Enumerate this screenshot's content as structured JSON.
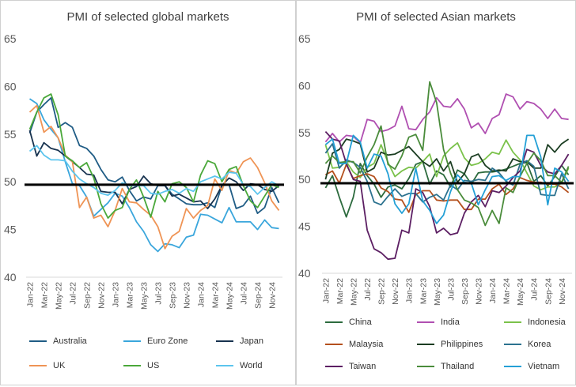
{
  "chart_data": [
    {
      "type": "line",
      "title": "PMI of selected global markets",
      "xlabel": "",
      "ylabel": "",
      "ylim": [
        40,
        65
      ],
      "yticks": [
        40,
        45,
        50,
        55,
        60,
        65
      ],
      "reference_line": 49.7,
      "x": [
        "Jan-22",
        "Feb-22",
        "Mar-22",
        "Apr-22",
        "May-22",
        "Jun-22",
        "Jul-22",
        "Aug-22",
        "Sep-22",
        "Oct-22",
        "Nov-22",
        "Dec-22",
        "Jan-23",
        "Feb-23",
        "Mar-23",
        "Apr-23",
        "May-23",
        "Jun-23",
        "Jul-23",
        "Aug-23",
        "Sep-23",
        "Oct-23",
        "Nov-23",
        "Dec-23",
        "Jan-24",
        "Feb-24",
        "Mar-24",
        "Apr-24",
        "May-24",
        "Jun-24",
        "Jul-24",
        "Aug-24",
        "Sep-24",
        "Oct-24",
        "Nov-24",
        "Dec-24"
      ],
      "xtick_labels": [
        "Jan-22",
        "Mar-22",
        "May-22",
        "Jul-22",
        "Sep-22",
        "Nov-22",
        "Jan-23",
        "Mar-23",
        "May-23",
        "Jul-23",
        "Sep-23",
        "Nov-23",
        "Jan-24",
        "Mar-24",
        "May-24",
        "Jul-24",
        "Sep-24",
        "Nov-24"
      ],
      "legend_position": "bottom",
      "series": [
        {
          "name": "Australia",
          "color": "#1f5c85",
          "values": [
            55.1,
            57.3,
            58.1,
            58.8,
            55.7,
            56.2,
            55.7,
            53.8,
            53.5,
            52.7,
            51.3,
            50.2,
            50.0,
            50.5,
            49.1,
            48.0,
            48.4,
            48.2,
            49.6,
            49.6,
            48.7,
            48.2,
            47.7,
            47.6,
            47.6,
            47.8,
            47.3,
            49.6,
            49.7,
            47.2,
            47.5,
            48.5,
            46.7,
            47.3,
            49.4,
            47.8
          ]
        },
        {
          "name": "Euro Zone",
          "color": "#3aa6dc",
          "values": [
            58.7,
            58.2,
            56.5,
            55.5,
            54.6,
            52.1,
            49.8,
            49.6,
            48.4,
            46.4,
            47.1,
            47.8,
            48.8,
            48.5,
            47.3,
            45.8,
            44.8,
            43.4,
            42.7,
            43.5,
            43.4,
            43.1,
            44.2,
            44.4,
            46.6,
            46.5,
            46.1,
            45.7,
            47.3,
            45.8,
            45.8,
            45.8,
            45.0,
            46.0,
            45.2,
            45.1
          ]
        },
        {
          "name": "Japan",
          "color": "#17324f",
          "values": [
            55.4,
            52.7,
            54.1,
            53.5,
            53.3,
            52.7,
            52.1,
            51.5,
            50.8,
            50.7,
            49.0,
            48.9,
            48.9,
            47.7,
            49.2,
            49.5,
            50.6,
            49.8,
            49.6,
            49.6,
            48.5,
            48.7,
            48.3,
            47.9,
            48.0,
            47.2,
            48.2,
            49.6,
            50.4,
            50.0,
            49.1,
            49.8,
            49.7,
            49.2,
            49.0,
            49.6
          ]
        },
        {
          "name": "UK",
          "color": "#ef9455",
          "values": [
            57.3,
            58.0,
            55.2,
            55.8,
            54.6,
            52.8,
            52.1,
            47.3,
            48.4,
            46.2,
            46.5,
            45.3,
            47.0,
            49.3,
            47.9,
            47.8,
            47.1,
            46.5,
            45.3,
            43.0,
            44.3,
            44.8,
            47.2,
            46.2,
            47.0,
            47.5,
            50.3,
            49.1,
            51.2,
            50.9,
            52.1,
            52.5,
            51.5,
            49.9,
            48.0,
            47.0
          ]
        },
        {
          "name": "US",
          "color": "#4aa83a",
          "values": [
            55.5,
            57.3,
            58.8,
            59.2,
            57.0,
            52.7,
            52.2,
            51.5,
            52.0,
            50.4,
            47.7,
            46.2,
            47.0,
            47.3,
            49.2,
            50.2,
            48.4,
            46.3,
            49.0,
            47.9,
            49.8,
            50.0,
            49.4,
            47.9,
            50.7,
            52.2,
            51.9,
            50.0,
            51.3,
            51.6,
            49.6,
            48.0,
            47.3,
            48.5,
            49.7,
            49.4
          ]
        },
        {
          "name": "World",
          "color": "#5cc5ee",
          "values": [
            53.2,
            53.8,
            52.8,
            52.3,
            52.3,
            52.2,
            51.1,
            50.3,
            49.8,
            49.4,
            48.8,
            48.6,
            49.1,
            49.9,
            49.6,
            49.6,
            49.6,
            48.8,
            48.7,
            49.0,
            49.2,
            48.8,
            49.3,
            49.0,
            50.0,
            50.3,
            50.6,
            50.3,
            51.0,
            50.9,
            49.7,
            49.5,
            48.7,
            49.4,
            50.0,
            49.6
          ]
        }
      ]
    },
    {
      "type": "line",
      "title": "PMI of selected Asian markets",
      "xlabel": "",
      "ylabel": "",
      "ylim": [
        40,
        65
      ],
      "yticks": [
        40,
        45,
        50,
        55,
        60,
        65
      ],
      "reference_line": 49.6,
      "x": [
        "Jan-22",
        "Feb-22",
        "Mar-22",
        "Apr-22",
        "May-22",
        "Jun-22",
        "Jul-22",
        "Aug-22",
        "Sep-22",
        "Oct-22",
        "Nov-22",
        "Dec-22",
        "Jan-23",
        "Feb-23",
        "Mar-23",
        "Apr-23",
        "May-23",
        "Jun-23",
        "Jul-23",
        "Aug-23",
        "Sep-23",
        "Oct-23",
        "Nov-23",
        "Dec-23",
        "Jan-24",
        "Feb-24",
        "Mar-24",
        "Apr-24",
        "May-24",
        "Jun-24",
        "Jul-24",
        "Aug-24",
        "Sep-24",
        "Oct-24",
        "Nov-24",
        "Dec-24"
      ],
      "xtick_labels": [
        "Jan-22",
        "Mar-22",
        "May-22",
        "Jul-22",
        "Sep-22",
        "Nov-22",
        "Jan-23",
        "Mar-23",
        "May-23",
        "Jul-23",
        "Sep-23",
        "Nov-23",
        "Jan-24",
        "Mar-24",
        "May-24",
        "Jul-24",
        "Sep-24",
        "Nov-24"
      ],
      "legend_position": "bottom",
      "series": [
        {
          "name": "China",
          "color": "#2d6b3e",
          "values": [
            49.1,
            50.4,
            48.1,
            46.0,
            48.1,
            51.7,
            50.4,
            49.5,
            48.1,
            49.2,
            49.4,
            49.0,
            50.1,
            51.6,
            51.9,
            49.5,
            50.9,
            50.5,
            49.2,
            51.0,
            50.6,
            49.5,
            50.7,
            50.8,
            50.8,
            50.9,
            51.1,
            51.4,
            51.7,
            51.8,
            49.8,
            50.4,
            49.3,
            50.3,
            51.5,
            50.5
          ]
        },
        {
          "name": "India",
          "color": "#b04fb1",
          "values": [
            54.0,
            54.9,
            54.0,
            54.7,
            54.6,
            53.9,
            56.4,
            56.2,
            55.1,
            55.3,
            55.7,
            57.8,
            55.4,
            55.3,
            56.4,
            57.2,
            58.7,
            57.8,
            57.7,
            58.6,
            57.5,
            55.5,
            56.0,
            54.9,
            56.5,
            56.9,
            59.1,
            58.8,
            57.5,
            58.3,
            58.1,
            57.5,
            56.5,
            57.5,
            56.5,
            56.4
          ]
        },
        {
          "name": "Indonesia",
          "color": "#7bc24b",
          "values": [
            53.7,
            51.2,
            51.3,
            51.9,
            50.8,
            50.2,
            51.3,
            51.7,
            53.7,
            51.8,
            50.3,
            50.9,
            51.3,
            51.2,
            51.9,
            52.7,
            50.3,
            52.5,
            53.3,
            53.9,
            52.3,
            51.5,
            51.7,
            52.2,
            52.9,
            52.7,
            54.2,
            52.9,
            52.1,
            50.7,
            49.3,
            48.9,
            49.2,
            49.2,
            49.6,
            51.2
          ]
        },
        {
          "name": "Malaysia",
          "color": "#b4501d",
          "values": [
            50.5,
            50.9,
            49.6,
            51.6,
            50.1,
            50.4,
            50.6,
            50.3,
            49.1,
            48.7,
            47.9,
            47.8,
            46.5,
            48.4,
            48.8,
            48.8,
            47.8,
            47.7,
            47.8,
            47.8,
            46.8,
            46.8,
            47.9,
            47.9,
            49.0,
            49.5,
            48.4,
            49.0,
            50.2,
            49.9,
            49.7,
            49.7,
            49.5,
            49.5,
            49.2,
            48.6
          ]
        },
        {
          "name": "Philippines",
          "color": "#1b3d22",
          "values": [
            50.0,
            52.8,
            53.2,
            54.3,
            54.1,
            53.8,
            50.8,
            51.2,
            52.9,
            52.6,
            52.7,
            53.1,
            53.5,
            52.7,
            51.9,
            51.4,
            52.2,
            50.9,
            51.9,
            49.7,
            50.6,
            52.4,
            52.7,
            51.5,
            50.9,
            51.0,
            50.9,
            52.2,
            51.9,
            51.9,
            51.2,
            51.2,
            53.7,
            52.9,
            53.8,
            54.3
          ]
        },
        {
          "name": "Korea",
          "color": "#2c728f",
          "values": [
            52.8,
            53.8,
            51.2,
            52.1,
            51.8,
            51.3,
            49.8,
            47.6,
            47.3,
            48.2,
            49.0,
            48.2,
            48.5,
            48.5,
            47.6,
            48.1,
            48.4,
            47.8,
            49.4,
            48.9,
            49.9,
            49.8,
            50.0,
            49.9,
            51.2,
            50.7,
            49.8,
            49.4,
            51.6,
            52.0,
            51.4,
            48.4,
            48.3,
            48.3,
            50.6,
            49.0
          ]
        },
        {
          "name": "Taiwan",
          "color": "#5c1f63",
          "values": [
            55.1,
            54.3,
            54.1,
            51.7,
            50.0,
            49.8,
            44.6,
            42.6,
            42.2,
            41.5,
            41.6,
            44.6,
            44.3,
            49.0,
            48.6,
            47.1,
            44.3,
            44.8,
            44.1,
            44.3,
            46.4,
            47.6,
            48.3,
            47.1,
            48.8,
            48.6,
            49.3,
            50.2,
            50.9,
            53.2,
            52.9,
            51.5,
            50.8,
            50.6,
            51.5,
            52.7
          ]
        },
        {
          "name": "Thailand",
          "color": "#4a8c3b",
          "values": [
            51.7,
            52.5,
            51.8,
            51.9,
            51.9,
            50.7,
            52.4,
            53.7,
            55.7,
            51.6,
            51.1,
            52.5,
            54.5,
            54.8,
            53.1,
            60.4,
            58.2,
            53.2,
            50.7,
            48.9,
            47.8,
            47.5,
            47.0,
            45.1,
            46.7,
            45.3,
            49.1,
            48.6,
            50.3,
            51.7,
            52.8,
            52.0,
            50.4,
            50.4,
            49.7,
            51.4
          ]
        },
        {
          "name": "Vietnam",
          "color": "#24a0d6",
          "values": [
            53.7,
            54.3,
            51.7,
            51.7,
            54.7,
            54.0,
            51.2,
            52.7,
            52.5,
            50.6,
            47.4,
            46.4,
            47.4,
            51.2,
            47.7,
            46.7,
            45.3,
            46.2,
            48.7,
            50.5,
            49.7,
            49.6,
            47.3,
            48.9,
            50.3,
            50.4,
            49.9,
            50.3,
            50.3,
            54.7,
            54.7,
            52.4,
            47.3,
            51.2,
            50.8,
            49.8
          ]
        }
      ]
    }
  ]
}
